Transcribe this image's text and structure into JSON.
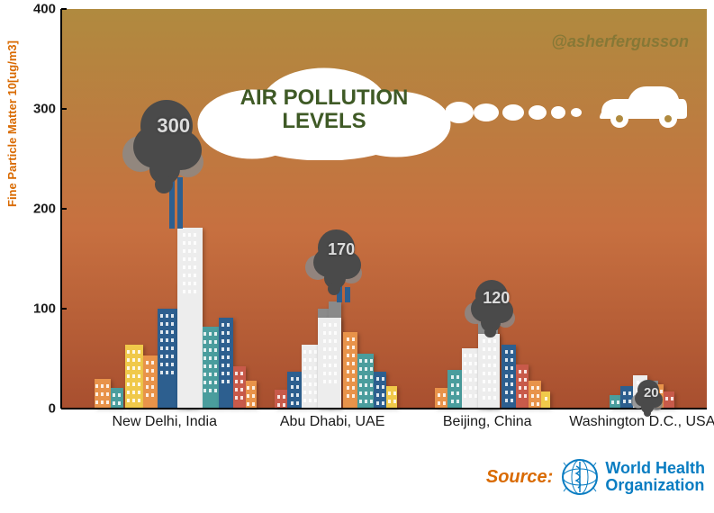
{
  "chart": {
    "type": "infographic-bar",
    "title_line1": "AIR POLLUTION",
    "title_line2": "LEVELS",
    "title_color": "#3f5a26",
    "title_fontsize": 24,
    "attribution": "@asherfergusson",
    "attribution_color": "#5a6b2e",
    "y_axis_label": "Fine Particle Matter 10[ug/m3]",
    "y_axis_label_color": "#d96a00",
    "ylim": [
      0,
      400
    ],
    "ytick_step": 100,
    "yticks": [
      "0",
      "100",
      "200",
      "300",
      "400"
    ],
    "background_gradient": {
      "top": "#b08a3f",
      "mid": "#c77040",
      "bottom": "#a84f2f"
    },
    "categories": [
      "New Delhi, India",
      "Abu Dhabi, UAE",
      "Beijing, China",
      "Washington D.C., USA"
    ],
    "values": [
      300,
      170,
      120,
      20
    ],
    "value_label_color": "#dcdcdc",
    "value_fontsize": [
      22,
      18,
      18,
      15
    ],
    "x_positions_pct": [
      16,
      42,
      66,
      90
    ],
    "smoke_dark": "#4a4a4a",
    "smoke_light": "#8a8a8a",
    "building_palette": {
      "blue": "#2d5f8f",
      "orange": "#e8934a",
      "yellow": "#f0c94a",
      "teal": "#4a9d9d",
      "white": "#ededed",
      "red": "#c85a4a",
      "grey": "#8a8a8a",
      "dark": "#3a3a3a"
    }
  },
  "footer": {
    "source_label": "Source:",
    "source_label_color": "#d96a00",
    "org_line1": "World Health",
    "org_line2": "Organization",
    "org_color": "#0a7dc2"
  }
}
